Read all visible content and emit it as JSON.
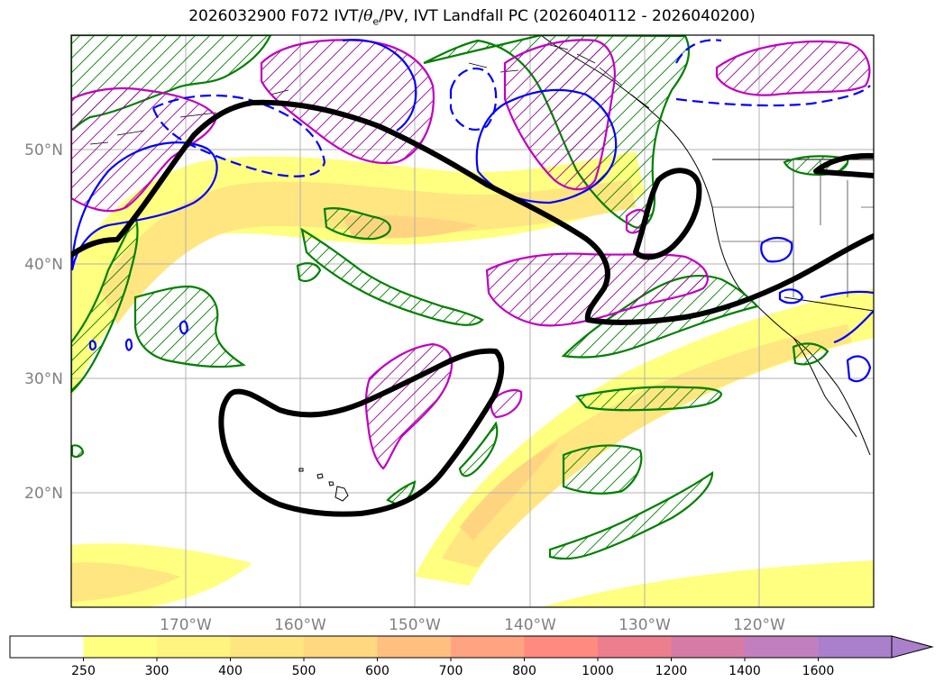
{
  "title": {
    "prefix": "2026032900 F072 IVT/",
    "theta": "θ",
    "theta_sub": "e",
    "suffix": "/PV, IVT Landfall PC (2026040112 - 2026040200)"
  },
  "map": {
    "extent": {
      "lon": [
        -180,
        -110
      ],
      "lat": [
        10,
        60
      ]
    },
    "lon_ticks": [
      {
        "lon": -170,
        "label": "170°W"
      },
      {
        "lon": -160,
        "label": "160°W"
      },
      {
        "lon": -150,
        "label": "150°W"
      },
      {
        "lon": -140,
        "label": "140°W"
      },
      {
        "lon": -130,
        "label": "130°W"
      },
      {
        "lon": -120,
        "label": "120°W"
      }
    ],
    "lat_ticks": [
      {
        "lat": 50,
        "label": "50°N"
      },
      {
        "lat": 40,
        "label": "40°N"
      },
      {
        "lat": 30,
        "label": "30°N"
      },
      {
        "lat": 20,
        "label": "20°N"
      }
    ],
    "colors": {
      "pc_contour": "#000000",
      "pv_contour": "#008000",
      "theta_e_contour": "#c000c0",
      "ivt_negative_contour": "#0000ff",
      "ivt_low": "#ffff80",
      "ivt_mid": "#ffe680",
      "ivt_high": "#ffd480",
      "grid": "#b0b0b0",
      "tick_label": "#808080"
    }
  },
  "colorbar": {
    "levels": [
      "250",
      "300",
      "400",
      "500",
      "600",
      "700",
      "800",
      "1000",
      "1200",
      "1400",
      "1600"
    ],
    "colors": [
      "#ffffff",
      "#ffff80",
      "#fff47f",
      "#ffe57f",
      "#ffd880",
      "#ffc07f",
      "#ffa380",
      "#ff8a80",
      "#ec7e8e",
      "#d67ba6",
      "#c17fc0",
      "#aa7fcc"
    ],
    "extend": "max"
  }
}
